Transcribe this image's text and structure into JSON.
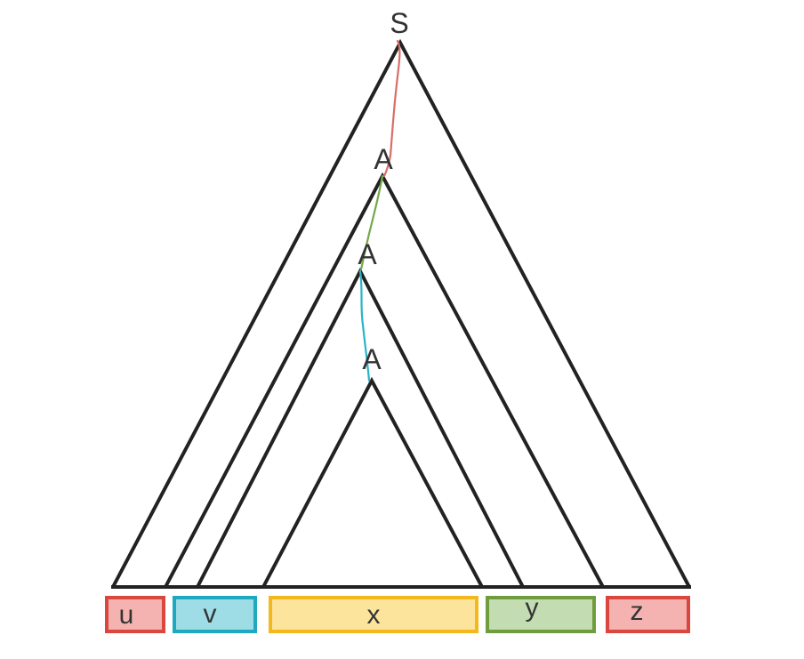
{
  "nodes": {
    "root_label": "S",
    "a1_label": "A",
    "a2_label": "A",
    "a3_label": "A"
  },
  "segments": [
    {
      "label": "u",
      "fill": "#f4b3b1",
      "stroke": "#d9473f"
    },
    {
      "label": "v",
      "fill": "#9fdde6",
      "stroke": "#1fa9c1"
    },
    {
      "label": "x",
      "fill": "#fde49c",
      "stroke": "#f3b81b"
    },
    {
      "label": "y",
      "fill": "#c4dcb1",
      "stroke": "#6f9d3e"
    },
    {
      "label": "z",
      "fill": "#f4b3b1",
      "stroke": "#d9473f"
    }
  ],
  "path_colors": {
    "s_to_a1": "#d86e68",
    "a1_to_a2": "#74a94b",
    "a2_to_a3": "#2bb3c8"
  }
}
